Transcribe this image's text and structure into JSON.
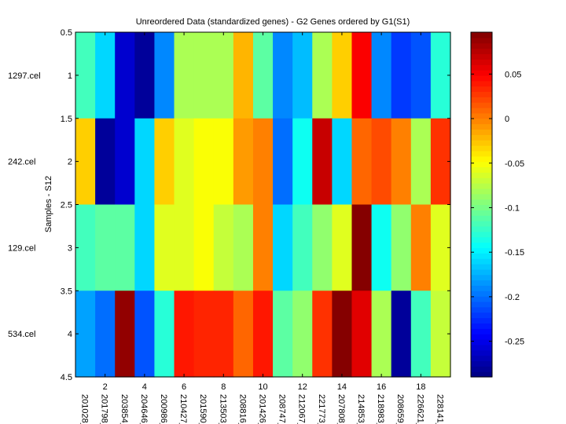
{
  "chart_data": {
    "type": "heatmap",
    "title": "Unreordered Data (standardized genes) - G2 Genes ordered by G1(S1)",
    "ylabel": "Samples - S12",
    "xlabel": "",
    "row_labels": [
      "1297.cel",
      "242.cel",
      "129.cel",
      "534.cel"
    ],
    "col_labels": [
      "201028_",
      "201798_",
      "203854_",
      "204646_",
      "200986_",
      "210427_",
      "201590_",
      "213503_",
      "208816_",
      "201426_",
      "208747_",
      "212067_",
      "221773_",
      "207808_",
      "214853_",
      "218983_",
      "208659_",
      "226621_",
      "228141_"
    ],
    "x_ticks": [
      2,
      4,
      6,
      8,
      10,
      12,
      14,
      16,
      18
    ],
    "y_ticks": [
      0.5,
      1,
      1.5,
      2,
      2.5,
      3,
      3.5,
      4,
      4.5
    ],
    "xlim": [
      0.5,
      19.5
    ],
    "ylim": [
      0.5,
      4.5
    ],
    "values": [
      [
        -0.12,
        -0.16,
        -0.26,
        -0.28,
        -0.19,
        -0.08,
        -0.08,
        -0.08,
        -0.02,
        -0.11,
        -0.19,
        -0.17,
        -0.08,
        -0.03,
        0.05,
        -0.19,
        -0.22,
        -0.21,
        -0.13
      ],
      [
        -0.03,
        -0.28,
        -0.26,
        -0.16,
        -0.03,
        -0.06,
        -0.05,
        -0.05,
        -0.01,
        0.0,
        -0.2,
        -0.14,
        0.07,
        -0.16,
        0.01,
        0.02,
        0.0,
        -0.08,
        0.03
      ],
      [
        -0.12,
        -0.11,
        -0.11,
        -0.16,
        -0.06,
        -0.06,
        -0.05,
        -0.07,
        -0.08,
        0.0,
        -0.16,
        -0.12,
        -0.09,
        -0.06,
        0.095,
        -0.14,
        -0.09,
        0.0,
        -0.06
      ],
      [
        -0.18,
        -0.2,
        0.09,
        -0.21,
        -0.13,
        0.04,
        0.035,
        0.035,
        0.01,
        0.04,
        -0.11,
        -0.09,
        0.03,
        0.095,
        0.06,
        -0.08,
        -0.28,
        -0.12,
        -0.07
      ]
    ],
    "colorbar": {
      "colormap": "jet",
      "min": -0.29,
      "max": 0.097,
      "ticks": [
        0.05,
        0,
        -0.05,
        -0.1,
        -0.15,
        -0.2,
        -0.25
      ]
    }
  }
}
